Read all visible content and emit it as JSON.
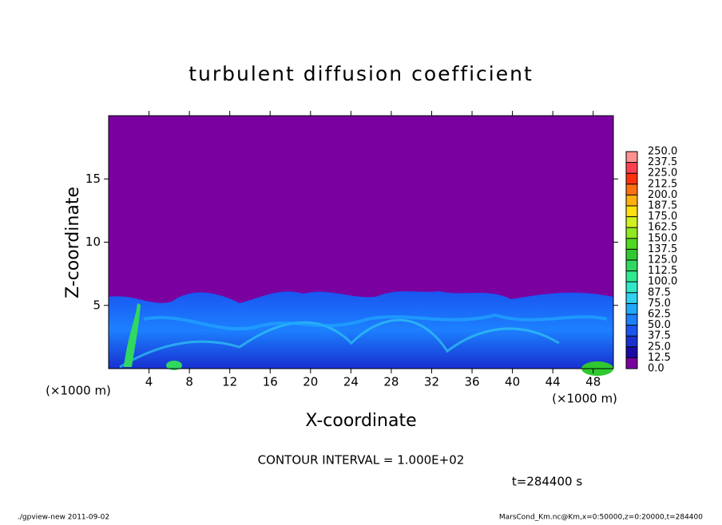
{
  "chart_data": {
    "type": "heatmap",
    "title": "turbulent diffusion coefficient",
    "x_label": "X-coordinate",
    "y_label": "Z-coordinate",
    "x_unit": "(×1000 m)",
    "y_unit": "(×1000 m)",
    "xlim": [
      0,
      50
    ],
    "xticks": [
      4,
      8,
      12,
      16,
      20,
      24,
      28,
      32,
      36,
      40,
      44,
      48
    ],
    "ylim": [
      0,
      20
    ],
    "yticks": [
      5,
      10,
      15
    ],
    "colorbar": {
      "levels": [
        {
          "value": 0,
          "label": "0.0"
        },
        {
          "value": 12.5,
          "label": "12.5"
        },
        {
          "value": 25,
          "label": "25.0"
        },
        {
          "value": 37.5,
          "label": "37.5"
        },
        {
          "value": 50,
          "label": "50.0"
        },
        {
          "value": 62.5,
          "label": "62.5"
        },
        {
          "value": 75,
          "label": "75.0"
        },
        {
          "value": 87.5,
          "label": "87.5"
        },
        {
          "value": 100,
          "label": "100.0"
        },
        {
          "value": 112.5,
          "label": "112.5"
        },
        {
          "value": 125,
          "label": "125.0"
        },
        {
          "value": 137.5,
          "label": "137.5"
        },
        {
          "value": 150,
          "label": "150.0"
        },
        {
          "value": 162.5,
          "label": "162.5"
        },
        {
          "value": 175,
          "label": "175.0"
        },
        {
          "value": 187.5,
          "label": "187.5"
        },
        {
          "value": 200,
          "label": "200.0"
        },
        {
          "value": 212.5,
          "label": "212.5"
        },
        {
          "value": 225,
          "label": "225.0"
        },
        {
          "value": 237.5,
          "label": "237.5"
        },
        {
          "value": 250,
          "label": "250.0"
        }
      ],
      "colors": [
        "#7a00a0",
        "#1a0aa8",
        "#1830d0",
        "#1a55f0",
        "#1c80ff",
        "#20a8ff",
        "#30d0f0",
        "#30e8c8",
        "#30e890",
        "#30d860",
        "#30c830",
        "#50d820",
        "#90e820",
        "#d0f020",
        "#ffe010",
        "#ffb010",
        "#ff7010",
        "#ff3010",
        "#ff4050",
        "#ff9090"
      ]
    },
    "note": "CONTOUR INTERVAL = 1.000E+02",
    "time": "t=284400 s",
    "footer_left": "./gpview-new  2011-09-02",
    "footer_right": "MarsCond_Km.nc@Km,x=0:50000,z=0:20000,t=284400"
  }
}
